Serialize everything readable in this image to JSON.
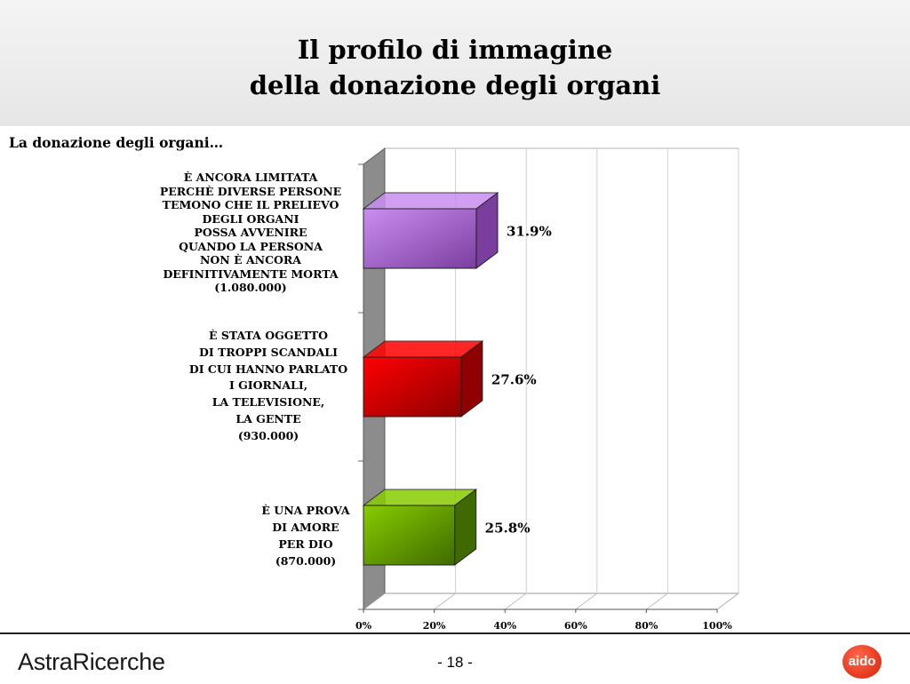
{
  "header": {
    "title": "Il profilo di immagine\ndella donazione degli organi"
  },
  "footer": {
    "brand": "AstraRicerche",
    "page": "- 18 -",
    "logo_text": "aido"
  },
  "chart_data": {
    "type": "bar",
    "orientation": "horizontal",
    "style": "3d",
    "title": "La donazione degli organi…",
    "categories": [
      [
        "È ANCORA LIMITATA",
        "PERCHÈ DIVERSE PERSONE",
        "TEMONO CHE IL PRELIEVO",
        "DEGLI ORGANI",
        "POSSA AVVENIRE",
        "QUANDO LA PERSONA",
        "NON È ANCORA",
        "DEFINITIVAMENTE MORTA",
        "(1.080.000)"
      ],
      [
        "È STATA OGGETTO",
        "DI TROPPI SCANDALI",
        "DI CUI HANNO PARLATO",
        "I GIORNALI,",
        "LA TELEVISIONE,",
        "LA GENTE",
        "(930.000)"
      ],
      [
        "È UNA PROVA",
        "DI AMORE",
        "PER DIO",
        "(870.000)"
      ]
    ],
    "values": [
      31.9,
      27.6,
      25.8
    ],
    "value_labels": [
      "31.9%",
      "27.6%",
      "25.8%"
    ],
    "bar_colors": [
      "#c98ef0",
      "#ff0000",
      "#88cc00"
    ],
    "bar_dark_colors": [
      "#7a3f9e",
      "#8f0000",
      "#3f6a00"
    ],
    "xlim": [
      0,
      100
    ],
    "xticks": [
      "0%",
      "20%",
      "40%",
      "60%",
      "80%",
      "100%"
    ],
    "grid": true
  }
}
